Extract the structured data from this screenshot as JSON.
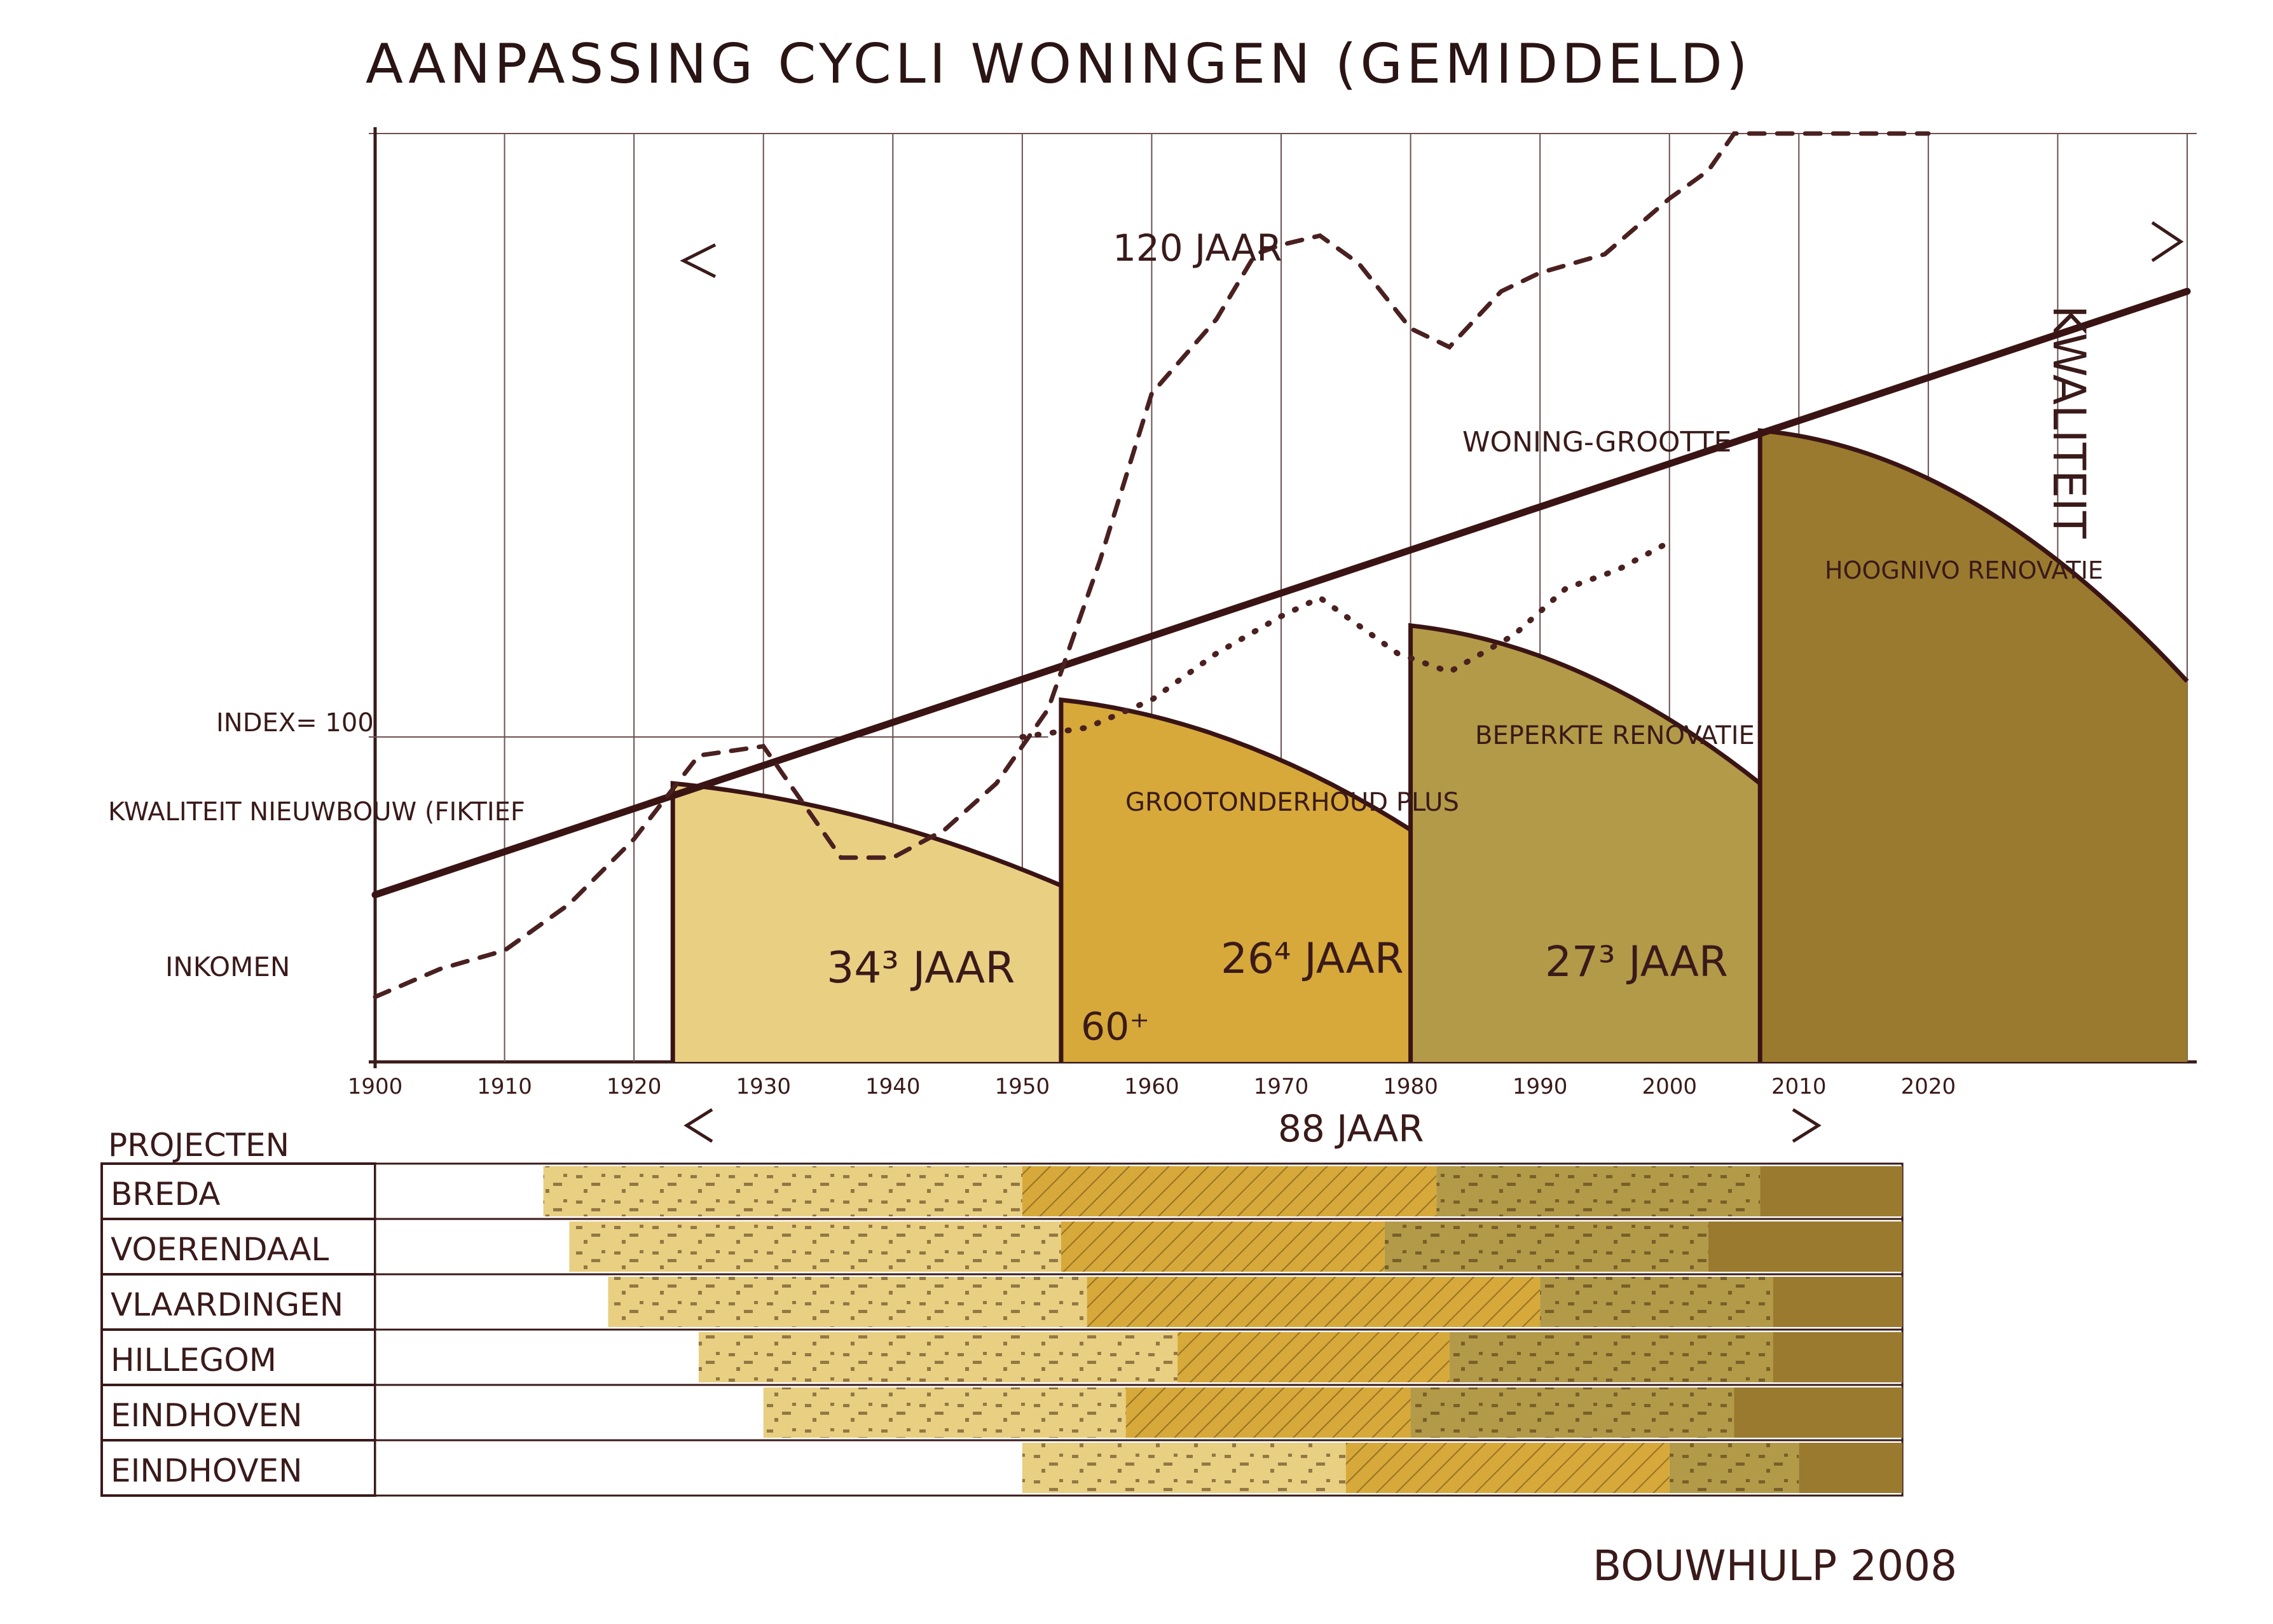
{
  "title": "AANPASSING CYCLI WONINGEN (GEMIDDELD)",
  "signature": "BOUWHULP 2008",
  "colors": {
    "phase1": "#e9cf82",
    "phase2": "#d6a93a",
    "phase3": "#b39a48",
    "phase4": "#9a7a2e",
    "ink": "#3a1a1a",
    "background": "#ffffff"
  },
  "annotations": {
    "span_120": "120 JAAR",
    "span_88": "88 JAAR",
    "woningrootte": "WONING-GROOTTE",
    "index": "INDEX= 100",
    "kwaliteit": "KWALITEIT NIEUWBOUW (FIKTIEF",
    "inkomen": "INKOMEN",
    "kwaliteit_vertical": "KWALITEIT",
    "cycle1": "34³ JAAR",
    "cycle2": "26⁴ JAAR",
    "cycle3": "27³ JAAR",
    "cycle1_sub": "60⁺",
    "phase2_label": "GROOTONDERHOUD PLUS",
    "phase3_label": "BEPERKTE RENOVATIE",
    "phase4_label": "HOOGNIVO RENOVATIE"
  },
  "chart_data": [
    {
      "type": "area",
      "title": "AANPASSING CYCLI WONINGEN (GEMIDDELD)",
      "x_ticks": [
        "1900",
        "1910",
        "1920",
        "1930",
        "1940",
        "1950",
        "1960",
        "1970",
        "1980",
        "1990",
        "2000",
        "2010",
        "2020"
      ],
      "xlim": [
        1900,
        2040
      ],
      "ylim": [
        0,
        100
      ],
      "grid": true,
      "series": [
        {
          "name": "KWALITEIT NIEUWBOUW (FIKTIEF",
          "style": "solid",
          "x": [
            1900,
            2040
          ],
          "y": [
            18,
            83
          ]
        },
        {
          "name": "INKOMEN",
          "style": "dashed",
          "x": [
            1900,
            1905,
            1910,
            1915,
            1920,
            1925,
            1930,
            1933,
            1936,
            1940,
            1944,
            1948,
            1952,
            1956,
            1960,
            1965,
            1968,
            1970,
            1973,
            1976,
            1980,
            1983,
            1987,
            1990,
            1995,
            2000,
            2003,
            2005,
            2010,
            2015,
            2020
          ],
          "y": [
            7,
            10,
            12,
            17,
            24,
            33,
            34,
            28,
            22,
            22,
            25,
            30,
            38,
            54,
            72,
            80,
            87,
            88,
            89,
            86,
            79,
            77,
            83,
            85,
            87,
            93,
            96,
            100,
            100,
            100,
            100
          ]
        },
        {
          "name": "",
          "style": "dotted",
          "x": [
            1950,
            1955,
            1960,
            1965,
            1970,
            1973,
            1976,
            1979,
            1983,
            1988,
            1992,
            1996,
            2000
          ],
          "y": [
            35,
            36,
            39,
            44,
            48,
            50,
            47,
            44,
            42,
            46,
            51,
            53,
            56
          ]
        }
      ],
      "phases": [
        {
          "label": "",
          "start": 1923,
          "end": 1953,
          "top_start": 30,
          "top_end": 19
        },
        {
          "label": "GROOTONDERHOUD PLUS",
          "start": 1953,
          "end": 1980,
          "top_start": 39,
          "top_end": 25
        },
        {
          "label": "BEPERKTE RENOVATIE",
          "start": 1980,
          "end": 2007,
          "top_start": 47,
          "top_end": 30
        },
        {
          "label": "HOOGNIVO RENOVATIE",
          "start": 2007,
          "end": 2040,
          "top_start": 68,
          "top_end": 41
        }
      ],
      "cycles": [
        {
          "label": "34³ JAAR",
          "years": 34
        },
        {
          "label": "26⁴ JAAR",
          "years": 26
        },
        {
          "label": "27³ JAAR",
          "years": 27
        }
      ]
    },
    {
      "type": "bar",
      "title": "PROJECTEN",
      "orientation": "horizontal",
      "segments": [
        "fase1",
        "fase2",
        "fase3",
        "fase4"
      ],
      "rows": [
        {
          "label": "BREDA",
          "starts": [
            1913,
            1950,
            1982,
            2007
          ],
          "end": 2018
        },
        {
          "label": "VOERENDAAL",
          "starts": [
            1915,
            1953,
            1978,
            2003
          ],
          "end": 2018
        },
        {
          "label": "VLAARDINGEN",
          "starts": [
            1918,
            1955,
            1990,
            2008
          ],
          "end": 2018
        },
        {
          "label": "HILLEGOM",
          "starts": [
            1925,
            1962,
            1983,
            2008
          ],
          "end": 2018
        },
        {
          "label": "EINDHOVEN",
          "starts": [
            1930,
            1958,
            1980,
            2005
          ],
          "end": 2018
        },
        {
          "label": "EINDHOVEN",
          "starts": [
            1950,
            1975,
            2000,
            2010
          ],
          "end": 2018
        }
      ]
    }
  ]
}
